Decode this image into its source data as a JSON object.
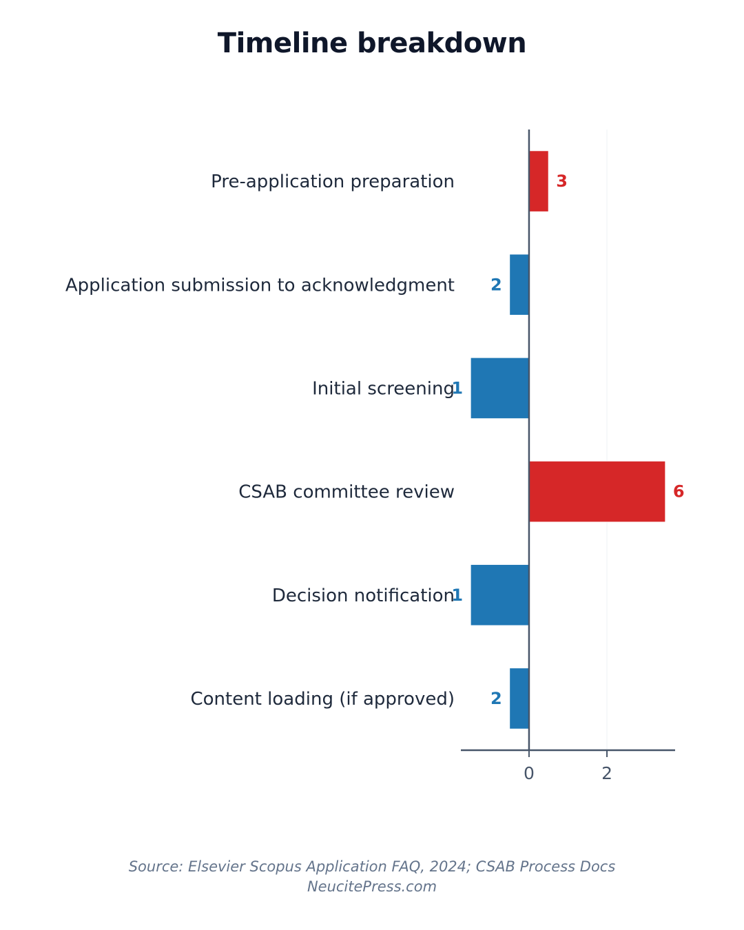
{
  "chart_data": {
    "type": "bar",
    "orientation": "horizontal",
    "title": "Timeline breakdown",
    "categories": [
      "Pre-application preparation",
      "Application submission to acknowledgment",
      "Initial screening",
      "CSAB committee review",
      "Decision notification",
      "Content loading (if approved)"
    ],
    "values": [
      0.5,
      -0.5,
      -1.5,
      3.5,
      -1.5,
      -0.5
    ],
    "data_labels": [
      "3",
      "2",
      "1",
      "6",
      "1",
      "2"
    ],
    "bar_colors": [
      "#d62728",
      "#1f77b4",
      "#1f77b4",
      "#d62728",
      "#1f77b4",
      "#1f77b4"
    ],
    "x_ticks": [
      0,
      2
    ],
    "x_tick_labels": [
      "0",
      "2"
    ],
    "xlim": [
      -1.75,
      3.75
    ],
    "grid": false,
    "legend": "none"
  },
  "source": {
    "line1": "Source: Elsevier Scopus Application FAQ, 2024; CSAB Process Docs",
    "line2": "NeucitePress.com"
  },
  "colors": {
    "positive": "#d62728",
    "negative": "#1f77b4",
    "axis": "#475569",
    "text": "#1e293b"
  }
}
